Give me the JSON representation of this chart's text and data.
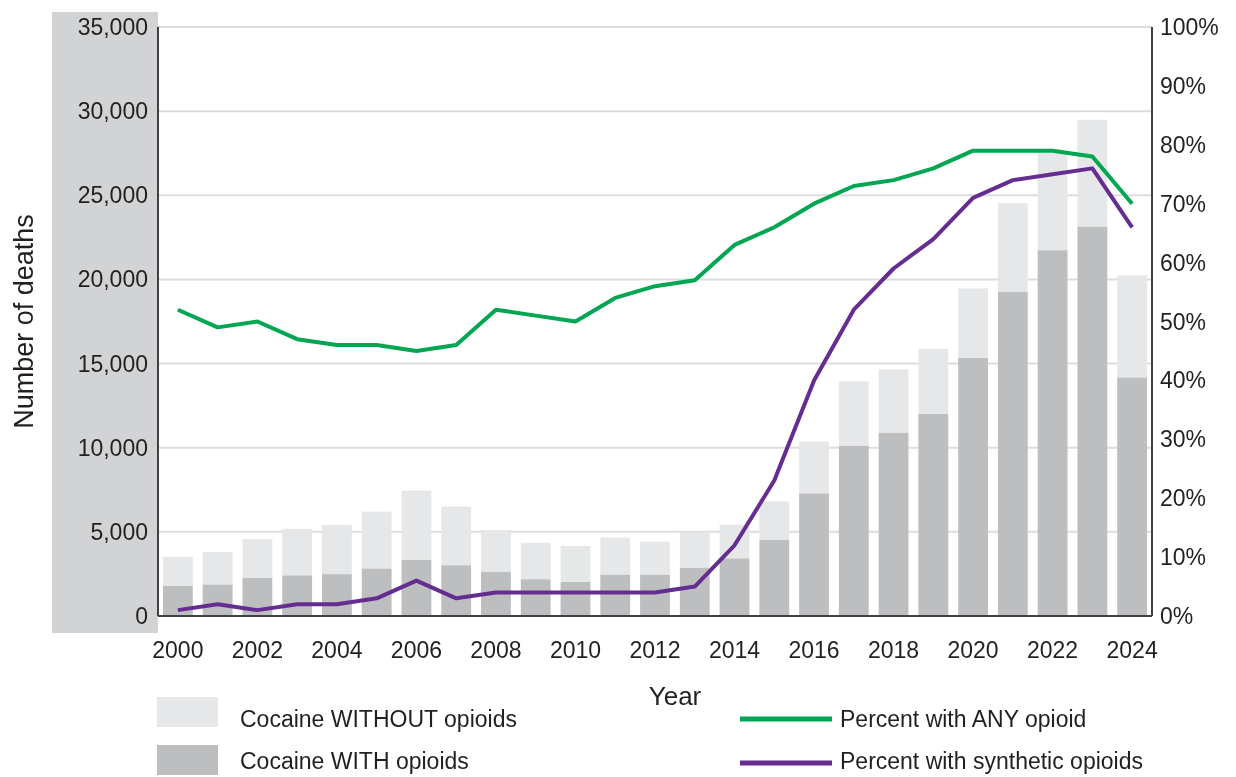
{
  "chart_data": {
    "type": "bar",
    "stacked": true,
    "xlabel": "Year",
    "ylabel": "Number of deaths",
    "categories": [
      "2000",
      null,
      "2002",
      null,
      "2004",
      null,
      "2006",
      null,
      "2008",
      null,
      "2010",
      null,
      "2012",
      null,
      "2014",
      null,
      "2016",
      null,
      "2018",
      null,
      "2020",
      null,
      "2022",
      null,
      "2024"
    ],
    "series": [
      {
        "name": "Cocaine WITH opioids",
        "color": "#bcbec0",
        "values": [
          1800,
          1880,
          2280,
          2420,
          2490,
          2830,
          3350,
          3020,
          2640,
          2190,
          2040,
          2470,
          2470,
          2880,
          3430,
          4540,
          7290,
          10130,
          10900,
          12010,
          15340,
          19280,
          21740,
          23150,
          14180
        ]
      },
      {
        "name": "Cocaine WITHOUT opioids",
        "color": "#e6e7e8",
        "values": [
          1720,
          1920,
          2300,
          2760,
          2920,
          3370,
          4110,
          3490,
          2470,
          2160,
          2120,
          2190,
          1950,
          2120,
          2000,
          2270,
          3080,
          3810,
          3760,
          3860,
          4130,
          5250,
          5760,
          6340,
          6060
        ]
      },
      {
        "name": "Percent with ANY opioid",
        "type": "line",
        "axis": "y2",
        "color": "#00a651",
        "values": [
          52,
          49,
          50,
          47,
          46,
          46,
          45,
          46,
          52,
          51,
          50,
          54,
          56,
          57,
          63,
          66,
          70,
          73,
          74,
          76,
          79,
          79,
          79,
          78,
          70
        ]
      },
      {
        "name": "Percent with synthetic opioids",
        "type": "line",
        "axis": "y2",
        "color": "#662d91",
        "values": [
          1,
          2,
          1,
          2,
          2,
          3,
          6,
          3,
          4,
          4,
          4,
          4,
          4,
          5,
          12,
          23,
          40,
          52,
          59,
          64,
          71,
          74,
          75,
          76,
          66
        ]
      }
    ],
    "ylim": [
      0,
      35000
    ],
    "yticks": [
      {
        "value": 0,
        "label": "0"
      },
      {
        "value": 5000,
        "label": "5,000"
      },
      {
        "value": 10000,
        "label": "10,000"
      },
      {
        "value": 15000,
        "label": "15,000"
      },
      {
        "value": 20000,
        "label": "20,000"
      },
      {
        "value": 25000,
        "label": "25,000"
      },
      {
        "value": 30000,
        "label": "30,000"
      },
      {
        "value": 35000,
        "label": "35,000"
      }
    ],
    "y2lim": [
      0,
      100
    ],
    "y2ticks": [
      {
        "value": 0,
        "label": "0%"
      },
      {
        "value": 10,
        "label": "10%"
      },
      {
        "value": 20,
        "label": "20%"
      },
      {
        "value": 30,
        "label": "30%"
      },
      {
        "value": 40,
        "label": "40%"
      },
      {
        "value": 50,
        "label": "50%"
      },
      {
        "value": 60,
        "label": "60%"
      },
      {
        "value": 70,
        "label": "70%"
      },
      {
        "value": 80,
        "label": "80%"
      },
      {
        "value": 90,
        "label": "90%"
      },
      {
        "value": 100,
        "label": "100%"
      }
    ],
    "grid": "y",
    "legend": "bottom"
  }
}
